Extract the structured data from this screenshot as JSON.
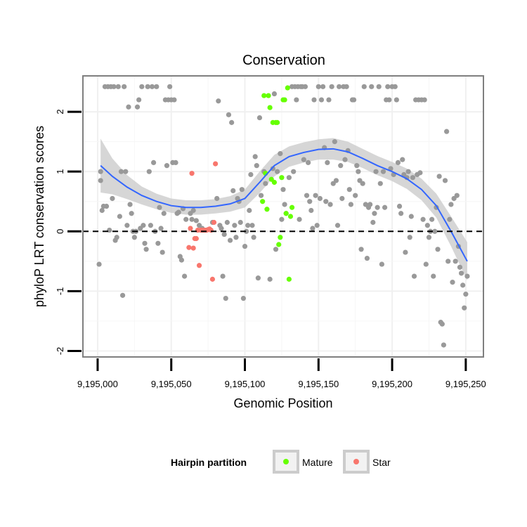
{
  "chart_data": {
    "type": "scatter",
    "title": "Conservation",
    "xlabel": "Genomic Position",
    "ylabel": "phyloP LRT conservation scores",
    "xlim": [
      9194990,
      9195262
    ],
    "ylim": [
      -2.1,
      2.6
    ],
    "x_ticks": [
      9195000,
      9195050,
      9195100,
      9195150,
      9195200,
      9195250
    ],
    "x_tick_labels": [
      "9,195,000",
      "9,195,050",
      "9,195,100",
      "9,195,150",
      "9,195,200",
      "9,195,250"
    ],
    "y_ticks": [
      -2,
      -1,
      0,
      1,
      2
    ],
    "y_tick_labels": [
      "-2",
      "-1",
      "0",
      "1",
      "2"
    ],
    "reference_line": {
      "y": 0,
      "style": "dashed"
    },
    "legend": {
      "title": "Hairpin partition",
      "entries": [
        {
          "name": "Mature",
          "color": "#66ff00"
        },
        {
          "name": "Star",
          "color": "#f8766d"
        }
      ]
    },
    "colors": {
      "other": "#999999",
      "mature": "#66ff00",
      "star": "#f8766d",
      "smooth": "#3366ff",
      "band": "#cccccc"
    },
    "series": [
      {
        "name": "Other",
        "points": [
          [
            9195001,
            -0.55
          ],
          [
            9195002,
            1.0
          ],
          [
            9195002,
            0.85
          ],
          [
            9195003,
            0.35
          ],
          [
            9195004,
            0.42
          ],
          [
            9195005,
            2.42
          ],
          [
            9195006,
            0.42
          ],
          [
            9195007,
            2.42
          ],
          [
            9195008,
            0.02
          ],
          [
            9195009,
            2.42
          ],
          [
            9195010,
            0.55
          ],
          [
            9195011,
            2.42
          ],
          [
            9195012,
            -0.15
          ],
          [
            9195013,
            -0.1
          ],
          [
            9195014,
            2.42
          ],
          [
            9195015,
            0.25
          ],
          [
            9195016,
            1.0
          ],
          [
            9195017,
            -1.07
          ],
          [
            9195018,
            2.42
          ],
          [
            9195019,
            1.0
          ],
          [
            9195020,
            0.1
          ],
          [
            9195021,
            2.08
          ],
          [
            9195022,
            0.45
          ],
          [
            9195023,
            0.3
          ],
          [
            9195024,
            0.0
          ],
          [
            9195025,
            -0.1
          ],
          [
            9195026,
            0.0
          ],
          [
            9195027,
            2.08
          ],
          [
            9195028,
            2.2
          ],
          [
            9195029,
            0.05
          ],
          [
            9195030,
            2.42
          ],
          [
            9195031,
            0.1
          ],
          [
            9195032,
            -0.2
          ],
          [
            9195033,
            -0.3
          ],
          [
            9195034,
            2.42
          ],
          [
            9195035,
            1.0
          ],
          [
            9195036,
            0.1
          ],
          [
            9195037,
            2.42
          ],
          [
            9195038,
            1.15
          ],
          [
            9195039,
            0.0
          ],
          [
            9195040,
            2.42
          ],
          [
            9195041,
            -0.2
          ],
          [
            9195042,
            0.4
          ],
          [
            9195043,
            0.05
          ],
          [
            9195044,
            -0.35
          ],
          [
            9195045,
            0.3
          ],
          [
            9195046,
            2.2
          ],
          [
            9195047,
            1.1
          ],
          [
            9195048,
            2.2
          ],
          [
            9195049,
            2.42
          ],
          [
            9195050,
            2.2
          ],
          [
            9195051,
            1.15
          ],
          [
            9195052,
            2.2
          ],
          [
            9195053,
            1.15
          ],
          [
            9195054,
            0.3
          ],
          [
            9195055,
            0.32
          ],
          [
            9195056,
            -0.42
          ],
          [
            9195057,
            -0.48
          ],
          [
            9195058,
            0.38
          ],
          [
            9195059,
            -0.75
          ],
          [
            9195060,
            0.2
          ],
          [
            9195063,
            0.3
          ],
          [
            9195064,
            0.2
          ],
          [
            9195065,
            0.35
          ],
          [
            9195067,
            0.18
          ],
          [
            9195069,
            0.1
          ],
          [
            9195071,
            0.05
          ],
          [
            9195078,
            0.15
          ],
          [
            9195081,
            0.55
          ],
          [
            9195082,
            2.18
          ],
          [
            9195083,
            0.1
          ],
          [
            9195084,
            0.05
          ],
          [
            9195085,
            -0.75
          ],
          [
            9195086,
            -0.05
          ],
          [
            9195087,
            -1.12
          ],
          [
            9195088,
            0.15
          ],
          [
            9195089,
            1.95
          ],
          [
            9195090,
            -0.15
          ],
          [
            9195091,
            1.82
          ],
          [
            9195092,
            0.68
          ],
          [
            9195093,
            0.1
          ],
          [
            9195094,
            -0.1
          ],
          [
            9195095,
            0.55
          ],
          [
            9195096,
            0.5
          ],
          [
            9195097,
            0.15
          ],
          [
            9195098,
            0.7
          ],
          [
            9195099,
            -1.12
          ],
          [
            9195100,
            -0.25
          ],
          [
            9195101,
            0.0
          ],
          [
            9195102,
            0.1
          ],
          [
            9195103,
            0.35
          ],
          [
            9195104,
            0.95
          ],
          [
            9195105,
            0.1
          ],
          [
            9195106,
            -0.1
          ],
          [
            9195107,
            1.25
          ],
          [
            9195108,
            1.1
          ],
          [
            9195109,
            -0.78
          ],
          [
            9195110,
            1.9
          ],
          [
            9195111,
            0.6
          ],
          [
            9195113,
            1.0
          ],
          [
            9195114,
            0.8
          ],
          [
            9195117,
            -0.8
          ],
          [
            9195119,
            1.05
          ],
          [
            9195120,
            2.3
          ],
          [
            9195121,
            -0.3
          ],
          [
            9195122,
            1.0
          ],
          [
            9195124,
            1.3
          ],
          [
            9195125,
            0.2
          ],
          [
            9195126,
            0.7
          ],
          [
            9195127,
            0.45
          ],
          [
            9195128,
            0.3
          ],
          [
            9195130,
            0.9
          ],
          [
            9195132,
            2.42
          ],
          [
            9195133,
            1.0
          ],
          [
            9195134,
            2.42
          ],
          [
            9195135,
            2.2
          ],
          [
            9195136,
            2.42
          ],
          [
            9195137,
            0.2
          ],
          [
            9195138,
            2.42
          ],
          [
            9195139,
            2.42
          ],
          [
            9195140,
            1.2
          ],
          [
            9195141,
            2.42
          ],
          [
            9195142,
            0.6
          ],
          [
            9195143,
            1.15
          ],
          [
            9195144,
            0.5
          ],
          [
            9195145,
            0.35
          ],
          [
            9195146,
            0.05
          ],
          [
            9195147,
            2.2
          ],
          [
            9195148,
            0.6
          ],
          [
            9195149,
            0.1
          ],
          [
            9195150,
            2.42
          ],
          [
            9195151,
            0.55
          ],
          [
            9195152,
            2.2
          ],
          [
            9195153,
            2.42
          ],
          [
            9195154,
            1.4
          ],
          [
            9195155,
            0.5
          ],
          [
            9195156,
            1.15
          ],
          [
            9195157,
            2.2
          ],
          [
            9195158,
            0.45
          ],
          [
            9195159,
            2.42
          ],
          [
            9195160,
            0.8
          ],
          [
            9195161,
            1.5
          ],
          [
            9195162,
            0.85
          ],
          [
            9195163,
            0.1
          ],
          [
            9195164,
            2.42
          ],
          [
            9195165,
            1.1
          ],
          [
            9195166,
            0.55
          ],
          [
            9195167,
            2.42
          ],
          [
            9195168,
            1.2
          ],
          [
            9195169,
            2.42
          ],
          [
            9195170,
            1.35
          ],
          [
            9195171,
            0.7
          ],
          [
            9195172,
            0.45
          ],
          [
            9195173,
            2.2
          ],
          [
            9195174,
            2.2
          ],
          [
            9195175,
            0.6
          ],
          [
            9195176,
            1.1
          ],
          [
            9195177,
            1.0
          ],
          [
            9195178,
            0.85
          ],
          [
            9195179,
            -0.3
          ],
          [
            9195180,
            0.8
          ],
          [
            9195181,
            2.42
          ],
          [
            9195182,
            0.45
          ],
          [
            9195183,
            -0.45
          ],
          [
            9195184,
            0.4
          ],
          [
            9195185,
            0.45
          ],
          [
            9195186,
            2.42
          ],
          [
            9195187,
            0.15
          ],
          [
            9195188,
            0.3
          ],
          [
            9195189,
            1.0
          ],
          [
            9195190,
            0.4
          ],
          [
            9195191,
            2.42
          ],
          [
            9195192,
            0.8
          ],
          [
            9195193,
            -0.55
          ],
          [
            9195194,
            1.0
          ],
          [
            9195195,
            0.4
          ],
          [
            9195196,
            2.2
          ],
          [
            9195197,
            2.42
          ],
          [
            9195198,
            2.2
          ],
          [
            9195199,
            1.05
          ],
          [
            9195200,
            2.42
          ],
          [
            9195201,
            0.95
          ],
          [
            9195202,
            2.42
          ],
          [
            9195203,
            2.2
          ],
          [
            9195204,
            1.15
          ],
          [
            9195205,
            0.42
          ],
          [
            9195206,
            0.3
          ],
          [
            9195207,
            1.2
          ],
          [
            9195208,
            0.95
          ],
          [
            9195209,
            -0.35
          ],
          [
            9195210,
            0.9
          ],
          [
            9195211,
            1.0
          ],
          [
            9195212,
            -0.1
          ],
          [
            9195213,
            0.25
          ],
          [
            9195214,
            0.9
          ],
          [
            9195215,
            -0.75
          ],
          [
            9195216,
            2.2
          ],
          [
            9195217,
            0.95
          ],
          [
            9195218,
            2.2
          ],
          [
            9195219,
            0.98
          ],
          [
            9195220,
            2.2
          ],
          [
            9195221,
            0.2
          ],
          [
            9195222,
            2.2
          ],
          [
            9195223,
            -0.55
          ],
          [
            9195224,
            0.1
          ],
          [
            9195225,
            -0.1
          ],
          [
            9195226,
            0.0
          ],
          [
            9195227,
            0.2
          ],
          [
            9195228,
            -0.75
          ],
          [
            9195229,
            0.0
          ],
          [
            9195230,
            0.4
          ],
          [
            9195231,
            -0.3
          ],
          [
            9195232,
            0.92
          ],
          [
            9195233,
            -1.52
          ],
          [
            9195234,
            -1.55
          ],
          [
            9195235,
            -1.9
          ],
          [
            9195236,
            0.85
          ],
          [
            9195237,
            1.67
          ],
          [
            9195238,
            -0.5
          ],
          [
            9195239,
            0.2
          ],
          [
            9195240,
            0.45
          ],
          [
            9195241,
            -0.85
          ],
          [
            9195242,
            0.55
          ],
          [
            9195243,
            -0.5
          ],
          [
            9195244,
            0.6
          ],
          [
            9195245,
            -0.25
          ],
          [
            9195246,
            -0.6
          ],
          [
            9195247,
            -0.7
          ],
          [
            9195248,
            -0.9
          ],
          [
            9195249,
            -1.28
          ],
          [
            9195250,
            -1.05
          ],
          [
            9195251,
            -0.75
          ]
        ]
      },
      {
        "name": "Mature",
        "points": [
          [
            9195112,
            0.5
          ],
          [
            9195113,
            2.27
          ],
          [
            9195114,
            0.97
          ],
          [
            9195115,
            0.37
          ],
          [
            9195116,
            2.27
          ],
          [
            9195117,
            2.07
          ],
          [
            9195118,
            0.87
          ],
          [
            9195119,
            1.82
          ],
          [
            9195120,
            0.82
          ],
          [
            9195121,
            1.82
          ],
          [
            9195122,
            1.82
          ],
          [
            9195123,
            -0.22
          ],
          [
            9195124,
            -0.1
          ],
          [
            9195125,
            0.9
          ],
          [
            9195126,
            2.2
          ],
          [
            9195127,
            2.2
          ],
          [
            9195128,
            0.3
          ],
          [
            9195129,
            2.4
          ],
          [
            9195130,
            -0.8
          ],
          [
            9195131,
            0.25
          ],
          [
            9195132,
            0.4
          ]
        ]
      },
      {
        "name": "Star",
        "points": [
          [
            9195062,
            -0.27
          ],
          [
            9195063,
            0.05
          ],
          [
            9195064,
            0.97
          ],
          [
            9195065,
            -0.28
          ],
          [
            9195066,
            -0.12
          ],
          [
            9195067,
            -0.12
          ],
          [
            9195068,
            0.02
          ],
          [
            9195069,
            -0.57
          ],
          [
            9195070,
            0.02
          ],
          [
            9195071,
            0.02
          ],
          [
            9195072,
            0.02
          ],
          [
            9195073,
            0.02
          ],
          [
            9195074,
            0.02
          ],
          [
            9195075,
            0.03
          ],
          [
            9195076,
            0.04
          ],
          [
            9195077,
            0.02
          ],
          [
            9195078,
            -0.8
          ],
          [
            9195079,
            0.15
          ],
          [
            9195080,
            1.13
          ]
        ]
      }
    ],
    "smooth": {
      "x": [
        9195002,
        9195010,
        9195020,
        9195030,
        9195040,
        9195050,
        9195060,
        9195070,
        9195080,
        9195090,
        9195100,
        9195110,
        9195120,
        9195130,
        9195140,
        9195150,
        9195160,
        9195170,
        9195180,
        9195190,
        9195200,
        9195210,
        9195220,
        9195230,
        9195240,
        9195251
      ],
      "y": [
        1.1,
        0.92,
        0.74,
        0.6,
        0.5,
        0.43,
        0.4,
        0.4,
        0.42,
        0.46,
        0.55,
        0.82,
        1.1,
        1.25,
        1.32,
        1.37,
        1.38,
        1.33,
        1.22,
        1.1,
        1.0,
        0.88,
        0.7,
        0.43,
        0.0,
        -0.5
      ],
      "se": [
        0.45,
        0.3,
        0.2,
        0.15,
        0.13,
        0.12,
        0.12,
        0.12,
        0.12,
        0.13,
        0.15,
        0.18,
        0.18,
        0.17,
        0.17,
        0.17,
        0.18,
        0.17,
        0.16,
        0.16,
        0.16,
        0.17,
        0.18,
        0.2,
        0.25,
        0.32
      ]
    }
  }
}
